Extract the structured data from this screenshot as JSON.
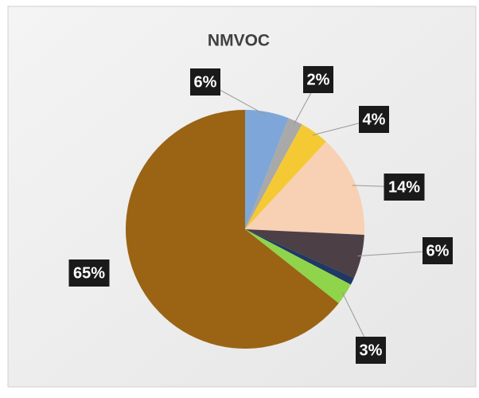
{
  "chart_data": {
    "type": "pie",
    "title": "NMVOC",
    "values": [
      6,
      2,
      4,
      14,
      6,
      1,
      3,
      65
    ],
    "value_labels": [
      "6%",
      "2%",
      "4%",
      "14%",
      "6%",
      null,
      "3%",
      "65%"
    ],
    "colors": [
      "#7ea6d8",
      "#a9a9a9",
      "#f5c933",
      "#f8d0b4",
      "#4c3f46",
      "#1f3864",
      "#8fd44a",
      "#9a6414"
    ]
  }
}
